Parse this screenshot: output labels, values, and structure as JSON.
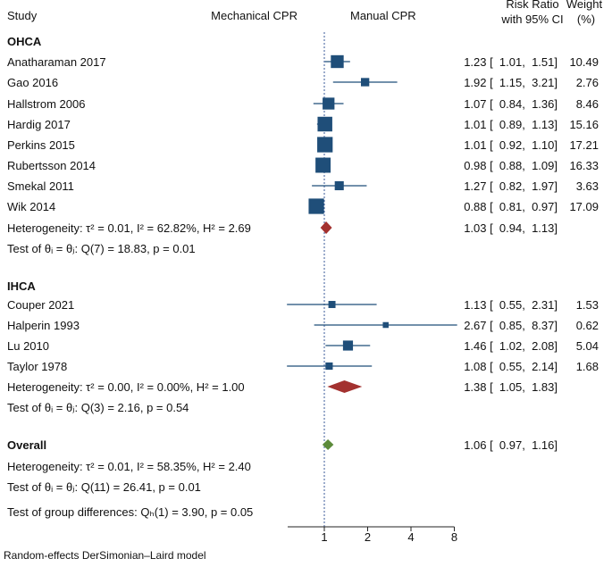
{
  "header": {
    "study": "Study",
    "left_label": "Mechanical CPR",
    "right_label": "Manual CPR",
    "rr_line1": "Risk Ratio",
    "rr_line2": "with 95% CI",
    "weight_line1": "Weight",
    "weight_line2": "(%)"
  },
  "footer": "Random-effects DerSimonian–Laird model",
  "colors": {
    "study_marker": "#1f4e79",
    "ci_line": "#1f4e79",
    "subgroup_diamond": "#a3312f",
    "overall_diamond": "#5b8a3a",
    "null_line": "#3a5a9a"
  },
  "chart_data": {
    "type": "forest",
    "scale": "log2",
    "axis_ticks": [
      1,
      2,
      4,
      8
    ],
    "axis_tick_labels": [
      "1",
      "2",
      "4",
      "8"
    ],
    "xlim": [
      0.5,
      8
    ],
    "null_value": 1,
    "groups": [
      {
        "name": "OHCA",
        "studies": [
          {
            "study": "Anatharaman 2017",
            "rr": 1.23,
            "lo": 1.01,
            "hi": 1.51,
            "ci_text": "1.23 [  1.01,  1.51]",
            "weight": "10.49",
            "w": 10.49
          },
          {
            "study": "Gao 2016",
            "rr": 1.92,
            "lo": 1.15,
            "hi": 3.21,
            "ci_text": "1.92 [  1.15,  3.21]",
            "weight": "2.76",
            "w": 2.76
          },
          {
            "study": "Hallstrom 2006",
            "rr": 1.07,
            "lo": 0.84,
            "hi": 1.36,
            "ci_text": "1.07 [  0.84,  1.36]",
            "weight": "8.46",
            "w": 8.46
          },
          {
            "study": "Hardig 2017",
            "rr": 1.01,
            "lo": 0.89,
            "hi": 1.13,
            "ci_text": "1.01 [  0.89,  1.13]",
            "weight": "15.16",
            "w": 15.16
          },
          {
            "study": "Perkins 2015",
            "rr": 1.01,
            "lo": 0.92,
            "hi": 1.1,
            "ci_text": "1.01 [  0.92,  1.10]",
            "weight": "17.21",
            "w": 17.21
          },
          {
            "study": "Rubertsson 2014",
            "rr": 0.98,
            "lo": 0.88,
            "hi": 1.09,
            "ci_text": "0.98 [  0.88,  1.09]",
            "weight": "16.33",
            "w": 16.33
          },
          {
            "study": "Smekal 2011",
            "rr": 1.27,
            "lo": 0.82,
            "hi": 1.97,
            "ci_text": "1.27 [  0.82,  1.97]",
            "weight": "3.63",
            "w": 3.63
          },
          {
            "study": "Wik 2014",
            "rr": 0.88,
            "lo": 0.81,
            "hi": 0.97,
            "ci_text": "0.88 [  0.81,  0.97]",
            "weight": "17.09",
            "w": 17.09
          }
        ],
        "pooled": {
          "label": "Heterogeneity: τ² = 0.01, I² = 62.82%, H² = 2.69",
          "rr": 1.03,
          "lo": 0.94,
          "hi": 1.13,
          "ci_text": "1.03 [  0.94,  1.13]"
        },
        "test_text": "Test of θᵢ = θⱼ: Q(7) = 18.83, p = 0.01"
      },
      {
        "name": "IHCA",
        "studies": [
          {
            "study": "Couper 2021",
            "rr": 1.13,
            "lo": 0.55,
            "hi": 2.31,
            "ci_text": "1.13 [  0.55,  2.31]",
            "weight": "1.53",
            "w": 1.53
          },
          {
            "study": "Halperin 1993",
            "rr": 2.67,
            "lo": 0.85,
            "hi": 8.37,
            "ci_text": "2.67 [  0.85,  8.37]",
            "weight": "0.62",
            "w": 0.62
          },
          {
            "study": "Lu 2010",
            "rr": 1.46,
            "lo": 1.02,
            "hi": 2.08,
            "ci_text": "1.46 [  1.02,  2.08]",
            "weight": "5.04",
            "w": 5.04
          },
          {
            "study": "Taylor 1978",
            "rr": 1.08,
            "lo": 0.55,
            "hi": 2.14,
            "ci_text": "1.08 [  0.55,  2.14]",
            "weight": "1.68",
            "w": 1.68
          }
        ],
        "pooled": {
          "label": "Heterogeneity: τ² = 0.00, I² = 0.00%, H² = 1.00",
          "rr": 1.38,
          "lo": 1.05,
          "hi": 1.83,
          "ci_text": "1.38 [  1.05,  1.83]"
        },
        "test_text": "Test of θᵢ = θⱼ: Q(3) = 2.16, p = 0.54"
      }
    ],
    "overall": {
      "label": "Overall",
      "rr": 1.06,
      "lo": 0.97,
      "hi": 1.16,
      "ci_text": "1.06 [  0.97,  1.16]",
      "heterogeneity_text": "Heterogeneity: τ² = 0.01, I² = 58.35%, H² = 2.40",
      "test_text": "Test of θᵢ = θⱼ: Q(11) = 26.41, p = 0.01",
      "group_diff_text": "Test of group differences: Qₕ(1) = 3.90, p = 0.05"
    }
  }
}
